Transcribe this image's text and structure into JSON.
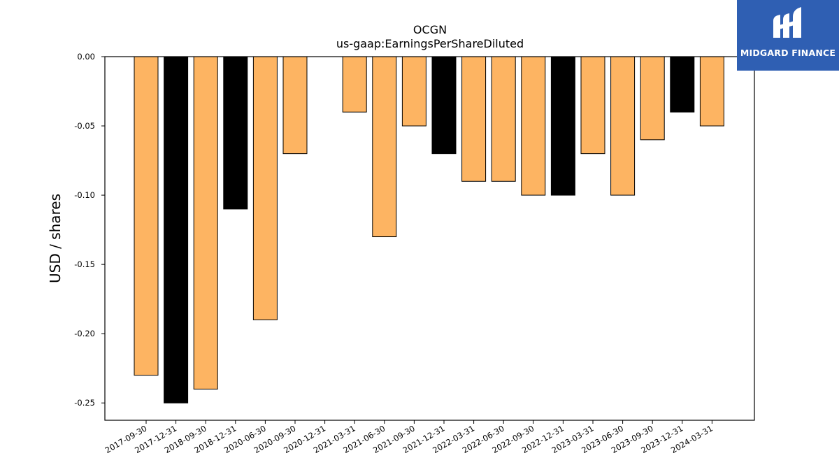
{
  "brand": {
    "name": "MIDGARD FINANCE",
    "color": "#2f5fb3"
  },
  "chart_data": {
    "type": "bar",
    "title": "OCGN",
    "subtitle": "us-gaap:EarningsPerShareDiluted",
    "xlabel": "",
    "ylabel": "USD / shares",
    "ylim": [
      -0.2625,
      0.0
    ],
    "yticks": [
      0.0,
      -0.05,
      -0.1,
      -0.15,
      -0.2,
      -0.25
    ],
    "ytick_labels": [
      "0.00",
      "-0.05",
      "-0.10",
      "-0.15",
      "-0.20",
      "-0.25"
    ],
    "grid": false,
    "categories": [
      "2017-09-30",
      "2017-12-31",
      "2018-09-30",
      "2018-12-31",
      "2020-06-30",
      "2020-09-30",
      "2020-12-31",
      "2021-03-31",
      "2021-06-30",
      "2021-09-30",
      "2021-12-31",
      "2022-03-31",
      "2022-06-30",
      "2022-09-30",
      "2022-12-31",
      "2023-03-31",
      "2023-06-30",
      "2023-09-30",
      "2023-12-31",
      "2024-03-31"
    ],
    "values": [
      -0.23,
      -0.25,
      -0.24,
      -0.11,
      -0.19,
      -0.07,
      0.0,
      -0.04,
      -0.13,
      -0.05,
      -0.07,
      -0.09,
      -0.09,
      -0.1,
      -0.1,
      -0.07,
      -0.1,
      -0.06,
      -0.04,
      -0.05
    ],
    "bar_colors": [
      "#fdb462",
      "#000000",
      "#fdb462",
      "#000000",
      "#fdb462",
      "#fdb462",
      "#fdb462",
      "#fdb462",
      "#fdb462",
      "#fdb462",
      "#000000",
      "#fdb462",
      "#fdb462",
      "#fdb462",
      "#000000",
      "#fdb462",
      "#fdb462",
      "#fdb462",
      "#000000",
      "#fdb462"
    ]
  }
}
